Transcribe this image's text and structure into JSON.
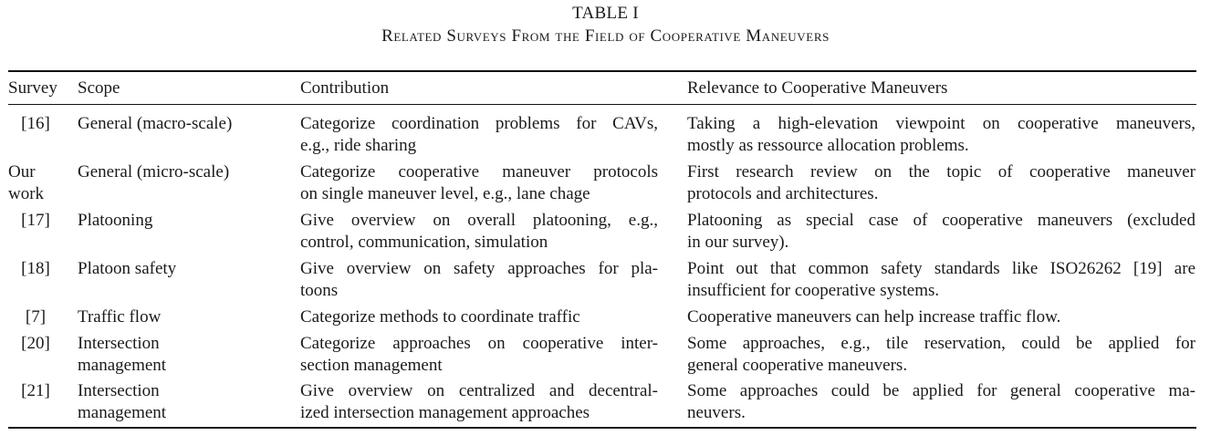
{
  "table": {
    "label": "TABLE I",
    "title": "Related Surveys From the Field of Cooperative Maneuvers",
    "headers": {
      "survey": "Survey",
      "scope": "Scope",
      "contribution": "Contribution",
      "relevance": "Relevance to Cooperative Maneuvers"
    },
    "rows": [
      {
        "survey": [
          "[16]"
        ],
        "scope": [
          "General (macro-scale)"
        ],
        "contribution": [
          "Categorize coordination problems for CAVs,",
          "e.g., ride sharing"
        ],
        "relevance": [
          "Taking a high-elevation viewpoint on cooperative maneuvers,",
          "mostly as ressource allocation problems."
        ]
      },
      {
        "survey": [
          "Our",
          "work"
        ],
        "scope": [
          "General (micro-scale)"
        ],
        "contribution": [
          "Categorize cooperative maneuver protocols",
          "on single maneuver level, e.g., lane chage"
        ],
        "relevance": [
          "First research review on the topic of cooperative maneuver",
          "protocols and architectures."
        ]
      },
      {
        "survey": [
          "[17]"
        ],
        "scope": [
          "Platooning"
        ],
        "contribution": [
          "Give overview on overall platooning, e.g.,",
          "control, communication, simulation"
        ],
        "relevance": [
          "Platooning as special case of cooperative maneuvers (excluded",
          "in our survey)."
        ]
      },
      {
        "survey": [
          "[18]"
        ],
        "scope": [
          "Platoon safety"
        ],
        "contribution": [
          "Give overview on safety approaches for pla-",
          "toons"
        ],
        "relevance": [
          "Point out that common safety standards like ISO26262 [19] are",
          "insufficient for cooperative systems."
        ]
      },
      {
        "survey": [
          "[7]"
        ],
        "scope": [
          "Traffic flow"
        ],
        "contribution": [
          "Categorize methods to coordinate traffic"
        ],
        "relevance": [
          "Cooperative maneuvers can help increase traffic flow."
        ]
      },
      {
        "survey": [
          "[20]"
        ],
        "scope": [
          "Intersection",
          "management"
        ],
        "contribution": [
          "Categorize approaches on cooperative inter-",
          "section management"
        ],
        "relevance": [
          "Some approaches, e.g., tile reservation, could be applied for",
          "general cooperative maneuvers."
        ]
      },
      {
        "survey": [
          "[21]"
        ],
        "scope": [
          "Intersection",
          "management"
        ],
        "contribution": [
          "Give overview on centralized and decentral-",
          "ized intersection management approaches"
        ],
        "relevance": [
          "Some approaches could be applied for general cooperative ma-",
          "neuvers."
        ]
      }
    ]
  }
}
